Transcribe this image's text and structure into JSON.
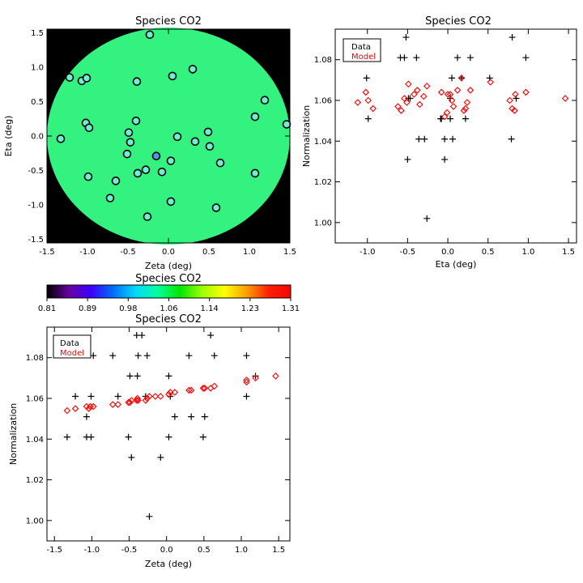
{
  "chart_data": [
    {
      "id": "map",
      "type": "scatter",
      "title": "Species CO2",
      "xlabel": "Zeta (deg)",
      "ylabel": "Eta (deg)",
      "xlim": [
        -1.5,
        1.5
      ],
      "ylim": [
        -1.55,
        1.55
      ],
      "xticks": [
        "-1.5",
        "-1.0",
        "-0.5",
        "0.0",
        "0.5",
        "1.0",
        "1.5"
      ],
      "yticks": [
        "-1.5",
        "-1.0",
        "-0.5",
        "0.0",
        "0.5",
        "1.0",
        "1.5"
      ],
      "background_color": "#000000",
      "disk_color": "#33f27f",
      "marker_color": "#6cf0d4",
      "marker_highlight_color": "#4a9ae8",
      "points": [
        {
          "x": -0.23,
          "y": 1.47
        },
        {
          "x": -1.22,
          "y": 0.85
        },
        {
          "x": -1.07,
          "y": 0.8
        },
        {
          "x": -1.01,
          "y": 0.84
        },
        {
          "x": -0.39,
          "y": 0.79
        },
        {
          "x": 0.05,
          "y": 0.87
        },
        {
          "x": 0.3,
          "y": 0.97
        },
        {
          "x": -1.02,
          "y": 0.19
        },
        {
          "x": -0.98,
          "y": 0.12
        },
        {
          "x": -0.4,
          "y": 0.22
        },
        {
          "x": -0.49,
          "y": 0.05
        },
        {
          "x": -1.33,
          "y": -0.04
        },
        {
          "x": -0.47,
          "y": -0.09
        },
        {
          "x": 0.11,
          "y": -0.01
        },
        {
          "x": 0.33,
          "y": -0.08
        },
        {
          "x": 0.49,
          "y": 0.06
        },
        {
          "x": 0.51,
          "y": -0.15
        },
        {
          "x": 1.07,
          "y": 0.28
        },
        {
          "x": 1.19,
          "y": 0.52
        },
        {
          "x": 1.46,
          "y": 0.17
        },
        {
          "x": -0.51,
          "y": -0.26
        },
        {
          "x": -0.15,
          "y": -0.29,
          "highlight": true
        },
        {
          "x": 0.03,
          "y": -0.36
        },
        {
          "x": -0.28,
          "y": -0.49
        },
        {
          "x": -0.38,
          "y": -0.54
        },
        {
          "x": -0.08,
          "y": -0.52
        },
        {
          "x": 0.64,
          "y": -0.39
        },
        {
          "x": -0.99,
          "y": -0.59
        },
        {
          "x": -0.65,
          "y": -0.65
        },
        {
          "x": -0.72,
          "y": -0.9
        },
        {
          "x": 0.03,
          "y": -0.95
        },
        {
          "x": 0.59,
          "y": -1.04
        },
        {
          "x": -0.26,
          "y": -1.17
        },
        {
          "x": 1.07,
          "y": -0.54
        }
      ]
    },
    {
      "id": "colorbar",
      "type": "heatmap",
      "title": "Species CO2",
      "ticks": [
        "0.81",
        "0.89",
        "0.98",
        "1.06",
        "1.14",
        "1.23",
        "1.31"
      ],
      "colormap": [
        "#000000",
        "#6a00a0",
        "#3a00ff",
        "#0070ff",
        "#00d8ff",
        "#00ff9c",
        "#00e600",
        "#9cff00",
        "#ffff00",
        "#ffa000",
        "#ff2000",
        "#ff0000"
      ]
    },
    {
      "id": "eta-norm",
      "type": "scatter",
      "title": "Species CO2",
      "xlabel": "Eta (deg)",
      "ylabel": "Normalization",
      "xlim": [
        -1.4,
        1.6
      ],
      "ylim": [
        0.99,
        1.095
      ],
      "xticks": [
        "-1.0",
        "-0.5",
        "0.0",
        "0.5",
        "1.0",
        "1.5"
      ],
      "yticks": [
        "1.00",
        "1.02",
        "1.04",
        "1.06",
        "1.08"
      ],
      "legend": [
        "Data",
        "Model"
      ],
      "legend_position": "top-left",
      "series": [
        {
          "name": "Data",
          "color": "#000000",
          "marker": "plus",
          "points": [
            [
              -1.22,
              1.081
            ],
            [
              -1.07,
              1.081
            ],
            [
              -1.01,
              1.071
            ],
            [
              -0.99,
              1.051
            ],
            [
              -0.59,
              1.081
            ],
            [
              -0.54,
              1.081
            ],
            [
              -0.52,
              1.091
            ],
            [
              -0.5,
              1.031
            ],
            [
              -0.49,
              1.061
            ],
            [
              -0.47,
              1.061
            ],
            [
              -0.39,
              1.081
            ],
            [
              -0.36,
              1.041
            ],
            [
              -0.29,
              1.041
            ],
            [
              -0.26,
              1.002
            ],
            [
              -0.09,
              1.051
            ],
            [
              -0.08,
              1.051
            ],
            [
              -0.04,
              1.031
            ],
            [
              -0.04,
              1.041
            ],
            [
              0.03,
              1.061
            ],
            [
              0.03,
              1.051
            ],
            [
              0.05,
              1.071
            ],
            [
              0.06,
              1.041
            ],
            [
              0.12,
              1.081
            ],
            [
              0.17,
              1.071
            ],
            [
              0.22,
              1.051
            ],
            [
              0.28,
              1.081
            ],
            [
              0.52,
              1.071
            ],
            [
              0.79,
              1.041
            ],
            [
              0.8,
              1.091
            ],
            [
              0.85,
              1.061
            ],
            [
              0.97,
              1.081
            ]
          ]
        },
        {
          "name": "Model",
          "color": "#ff0000",
          "marker": "diamond",
          "points": [
            [
              -1.12,
              1.059
            ],
            [
              -1.02,
              1.064
            ],
            [
              -0.99,
              1.06
            ],
            [
              -0.93,
              1.056
            ],
            [
              -0.62,
              1.057
            ],
            [
              -0.58,
              1.055
            ],
            [
              -0.54,
              1.061
            ],
            [
              -0.51,
              1.059
            ],
            [
              -0.49,
              1.068
            ],
            [
              -0.42,
              1.063
            ],
            [
              -0.38,
              1.065
            ],
            [
              -0.35,
              1.058
            ],
            [
              -0.3,
              1.062
            ],
            [
              -0.26,
              1.067
            ],
            [
              -0.08,
              1.064
            ],
            [
              -0.04,
              1.052
            ],
            [
              -0.01,
              1.054
            ],
            [
              0.0,
              1.063
            ],
            [
              0.03,
              1.063
            ],
            [
              0.05,
              1.06
            ],
            [
              0.07,
              1.057
            ],
            [
              0.12,
              1.065
            ],
            [
              0.17,
              1.071
            ],
            [
              0.2,
              1.055
            ],
            [
              0.22,
              1.056
            ],
            [
              0.24,
              1.059
            ],
            [
              0.28,
              1.065
            ],
            [
              0.53,
              1.069
            ],
            [
              0.77,
              1.06
            ],
            [
              0.8,
              1.056
            ],
            [
              0.83,
              1.055
            ],
            [
              0.84,
              1.063
            ],
            [
              0.97,
              1.064
            ],
            [
              1.46,
              1.061
            ]
          ]
        }
      ]
    },
    {
      "id": "zeta-norm",
      "type": "scatter",
      "title": "Species CO2",
      "xlabel": "Zeta (deg)",
      "ylabel": "Normalization",
      "xlim": [
        -1.6,
        1.65
      ],
      "ylim": [
        0.99,
        1.095
      ],
      "xticks": [
        "-1.5",
        "-1.0",
        "-0.5",
        "0.0",
        "0.5",
        "1.0",
        "1.5"
      ],
      "yticks": [
        "1.00",
        "1.02",
        "1.04",
        "1.06",
        "1.08"
      ],
      "legend": [
        "Data",
        "Model"
      ],
      "legend_position": "top-left",
      "series": [
        {
          "name": "Data",
          "color": "#000000",
          "marker": "plus",
          "points": [
            [
              -1.33,
              1.041
            ],
            [
              -1.22,
              1.061
            ],
            [
              -1.07,
              1.051
            ],
            [
              -1.07,
              1.041
            ],
            [
              -1.01,
              1.041
            ],
            [
              -1.01,
              1.061
            ],
            [
              -0.98,
              1.081
            ],
            [
              -0.72,
              1.081
            ],
            [
              -0.65,
              1.061
            ],
            [
              -0.51,
              1.041
            ],
            [
              -0.49,
              1.071
            ],
            [
              -0.47,
              1.031
            ],
            [
              -0.4,
              1.091
            ],
            [
              -0.39,
              1.071
            ],
            [
              -0.38,
              1.081
            ],
            [
              -0.33,
              1.091
            ],
            [
              -0.28,
              1.061
            ],
            [
              -0.26,
              1.081
            ],
            [
              -0.23,
              1.002
            ],
            [
              -0.08,
              1.031
            ],
            [
              0.03,
              1.071
            ],
            [
              0.03,
              1.041
            ],
            [
              0.05,
              1.061
            ],
            [
              0.11,
              1.051
            ],
            [
              0.3,
              1.081
            ],
            [
              0.33,
              1.051
            ],
            [
              0.49,
              1.041
            ],
            [
              0.51,
              1.051
            ],
            [
              0.59,
              1.091
            ],
            [
              0.64,
              1.081
            ],
            [
              1.07,
              1.081
            ],
            [
              1.07,
              1.061
            ],
            [
              1.19,
              1.071
            ]
          ]
        },
        {
          "name": "Model",
          "color": "#ff0000",
          "marker": "diamond",
          "points": [
            [
              -1.33,
              1.054
            ],
            [
              -1.22,
              1.055
            ],
            [
              -1.07,
              1.056
            ],
            [
              -1.04,
              1.055
            ],
            [
              -1.02,
              1.056
            ],
            [
              -0.98,
              1.056
            ],
            [
              -0.72,
              1.057
            ],
            [
              -0.65,
              1.057
            ],
            [
              -0.51,
              1.058
            ],
            [
              -0.49,
              1.058
            ],
            [
              -0.47,
              1.059
            ],
            [
              -0.4,
              1.059
            ],
            [
              -0.39,
              1.06
            ],
            [
              -0.38,
              1.059
            ],
            [
              -0.28,
              1.059
            ],
            [
              -0.26,
              1.06
            ],
            [
              -0.23,
              1.061
            ],
            [
              -0.15,
              1.061
            ],
            [
              -0.08,
              1.061
            ],
            [
              0.03,
              1.062
            ],
            [
              0.03,
              1.062
            ],
            [
              0.05,
              1.063
            ],
            [
              0.11,
              1.063
            ],
            [
              0.3,
              1.064
            ],
            [
              0.33,
              1.064
            ],
            [
              0.49,
              1.065
            ],
            [
              0.51,
              1.065
            ],
            [
              0.59,
              1.065
            ],
            [
              0.64,
              1.066
            ],
            [
              1.07,
              1.068
            ],
            [
              1.07,
              1.069
            ],
            [
              1.19,
              1.07
            ],
            [
              1.46,
              1.071
            ]
          ]
        }
      ]
    }
  ]
}
